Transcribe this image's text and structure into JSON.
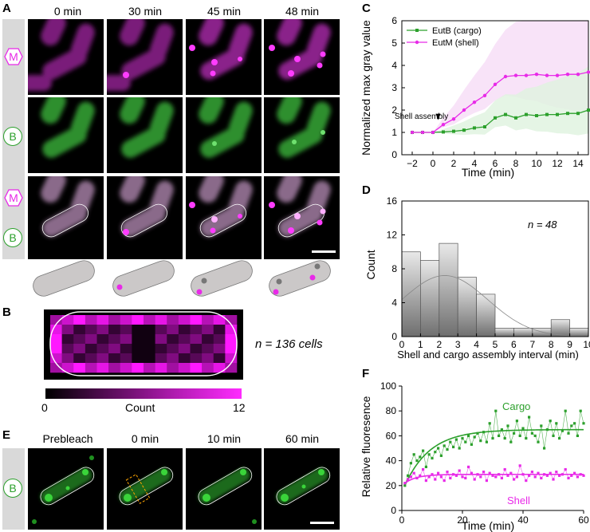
{
  "panel_labels": {
    "a": "A",
    "b": "B",
    "c": "C",
    "d": "D",
    "e": "E",
    "f": "F"
  },
  "panel_a": {
    "time_labels": [
      "0 min",
      "30 min",
      "45 min",
      "48 min"
    ],
    "row_badges": {
      "shell": "M",
      "cargo": "B"
    }
  },
  "panel_b": {
    "n_label": "n = 136 cells",
    "colorbar": {
      "min": "0",
      "label": "Count",
      "max": "12"
    }
  },
  "panel_e": {
    "time_labels": [
      "Prebleach",
      "0 min",
      "10 min",
      "60 min"
    ],
    "row_badge": "B"
  },
  "colors": {
    "cargo": "#2ca02c",
    "shell": "#e82ae8",
    "histogram": "#9b9b9b"
  },
  "chart_data": [
    {
      "id": "C",
      "type": "line",
      "title": "",
      "xlabel": "Time (min)",
      "ylabel": "Normalized max gray value",
      "xlim": [
        -3,
        15
      ],
      "ylim": [
        0,
        6
      ],
      "xticks": [
        "−2",
        "0",
        "2",
        "4",
        "6",
        "8",
        "10",
        "12",
        "14"
      ],
      "yticks": [
        "0",
        "1",
        "2",
        "3",
        "4",
        "5",
        "6"
      ],
      "annotation": "Shell assembly",
      "x": [
        -2,
        -1,
        0,
        1,
        2,
        3,
        4,
        5,
        6,
        7,
        8,
        9,
        10,
        11,
        12,
        13,
        14,
        15
      ],
      "series": [
        {
          "name": "EutB (cargo)",
          "values": [
            1,
            1,
            1,
            1.02,
            1.05,
            1.1,
            1.2,
            1.25,
            1.65,
            1.8,
            1.65,
            1.8,
            1.75,
            1.8,
            1.8,
            1.85,
            1.85,
            2.0
          ]
        },
        {
          "name": "EutM (shell)",
          "values": [
            1,
            1,
            1,
            1.35,
            1.6,
            2.0,
            2.35,
            2.65,
            3.15,
            3.5,
            3.55,
            3.55,
            3.6,
            3.55,
            3.55,
            3.6,
            3.6,
            3.7
          ]
        }
      ]
    },
    {
      "id": "D",
      "type": "bar",
      "title": "",
      "xlabel": "Shell and cargo assembly interval (min)",
      "ylabel": "Count",
      "xlim": [
        0,
        10
      ],
      "ylim": [
        0,
        16
      ],
      "xticks": [
        "0",
        "1",
        "2",
        "3",
        "4",
        "5",
        "6",
        "7",
        "8",
        "9",
        "10"
      ],
      "yticks": [
        "0",
        "4",
        "8",
        "12",
        "16"
      ],
      "annotation": "n = 48",
      "bin_edges": [
        0,
        1,
        2,
        3,
        4,
        5,
        6,
        7,
        8,
        9,
        10
      ],
      "values": [
        10,
        9,
        11,
        7,
        5,
        1,
        1,
        1,
        2,
        1
      ],
      "fit": "gaussian"
    },
    {
      "id": "F",
      "type": "scatter",
      "title": "",
      "xlabel": "Time (min)",
      "ylabel": "Relative fluoresence",
      "xlim": [
        0,
        60
      ],
      "ylim": [
        0,
        100
      ],
      "xticks": [
        "0",
        "20",
        "40",
        "60"
      ],
      "yticks": [
        "0",
        "20",
        "40",
        "60",
        "80",
        "100"
      ],
      "series": [
        {
          "name": "Cargo",
          "plateau": 65,
          "start": 20,
          "values": [
            20,
            28,
            38,
            45,
            40,
            43,
            48,
            35,
            45,
            42,
            47,
            50,
            44,
            52,
            49,
            55,
            51,
            57,
            50,
            58,
            55,
            60,
            53,
            59,
            62,
            56,
            63,
            55,
            70,
            58,
            80,
            60,
            65,
            58,
            68,
            55,
            62,
            72,
            60,
            66,
            58,
            75,
            62,
            60,
            55,
            68,
            50,
            65,
            72,
            60,
            70,
            58,
            64,
            80,
            62,
            68,
            70,
            60,
            80,
            70
          ]
        },
        {
          "name": "Shell",
          "plateau": 29,
          "start": 22,
          "values": [
            22,
            25,
            27,
            30,
            26,
            28,
            33,
            24,
            27,
            29,
            25,
            30,
            27,
            24,
            31,
            26,
            29,
            28,
            32,
            27,
            26,
            35,
            30,
            25,
            29,
            27,
            31,
            24,
            30,
            28,
            27,
            29,
            26,
            33,
            28,
            30,
            25,
            27,
            36,
            29,
            24,
            28,
            31,
            27,
            30,
            26,
            29,
            28,
            30,
            25,
            31,
            28,
            29,
            33,
            26,
            28,
            30,
            27,
            29,
            28
          ]
        }
      ]
    }
  ]
}
